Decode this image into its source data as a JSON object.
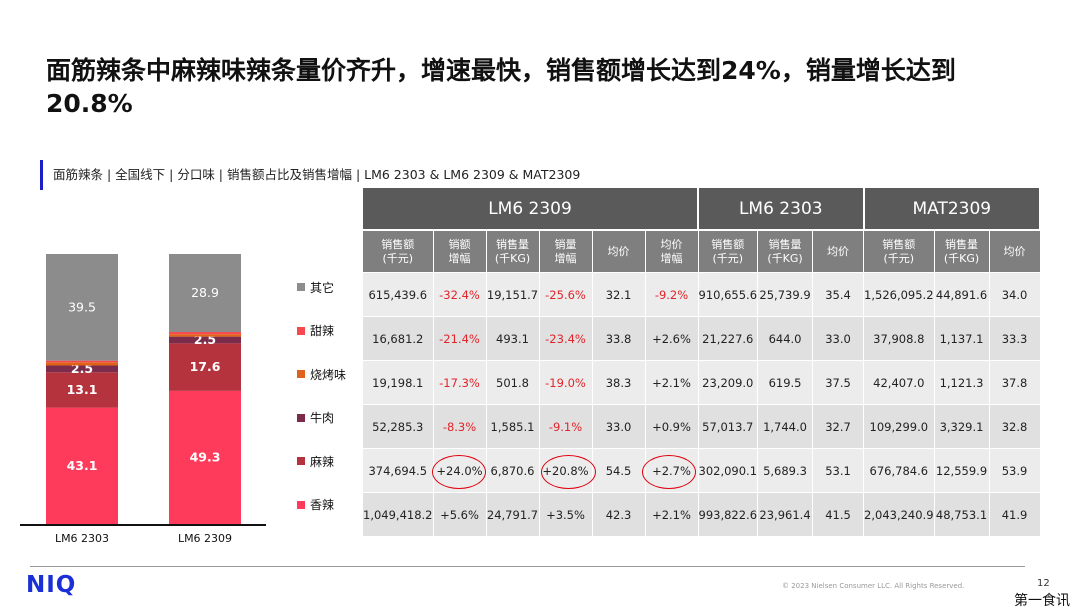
{
  "title": "面筋辣条中麻辣味辣条量价齐升，增速最快，销售额增长达到24%，销量增长达到20.8%",
  "subtitle": "面筋辣条 | 全国线下 | 分口味 | 销售额占比及销售增幅 | LM6 2303 & LM6 2309 & MAT2309",
  "chart_data": {
    "type": "bar",
    "stacked": true,
    "categories": [
      "LM6 2303",
      "LM6 2309"
    ],
    "series": [
      {
        "name": "香辣",
        "values": [
          43.1,
          49.3
        ],
        "color": "#ff3b5c"
      },
      {
        "name": "麻辣",
        "values": [
          13.1,
          17.6
        ],
        "color": "#b5333d"
      },
      {
        "name": "牛肉",
        "values": [
          2.5,
          2.5
        ],
        "color": "#7a2c4a"
      },
      {
        "name": "烧烤味",
        "values": [
          1.2,
          0.9
        ],
        "color": "#e0621a"
      },
      {
        "name": "甜辣",
        "values": [
          0.6,
          0.8
        ],
        "color": "#f7484f"
      },
      {
        "name": "其它",
        "values": [
          39.5,
          28.9
        ],
        "color": "#8c8c8c"
      }
    ],
    "ylim": [
      0,
      100
    ],
    "legend_position": "right"
  },
  "legend": [
    {
      "label": "其它",
      "color": "#8c8c8c"
    },
    {
      "label": "甜辣",
      "color": "#f7484f"
    },
    {
      "label": "烧烤味",
      "color": "#e0621a"
    },
    {
      "label": "牛肉",
      "color": "#7a2c4a"
    },
    {
      "label": "麻辣",
      "color": "#b5333d"
    },
    {
      "label": "香辣",
      "color": "#ff3b5c"
    }
  ],
  "table": {
    "groups": [
      "LM6 2309",
      "LM6 2303",
      "MAT2309"
    ],
    "headers": [
      "销售额\n(千元)",
      "销额\n增幅",
      "销售量\n(千KG)",
      "销量\n增幅",
      "均价",
      "均价\n增幅",
      "销售额\n(千元)",
      "销售量\n(千KG)",
      "均价",
      "销售额\n(千元)",
      "销售量\n(千KG)",
      "均价"
    ],
    "rows": [
      [
        "615,439.6",
        "-32.4%",
        "19,151.7",
        "-25.6%",
        "32.1",
        "-9.2%",
        "910,655.6",
        "25,739.9",
        "35.4",
        "1,526,095.2",
        "44,891.6",
        "34.0"
      ],
      [
        "16,681.2",
        "-21.4%",
        "493.1",
        "-23.4%",
        "33.8",
        "+2.6%",
        "21,227.6",
        "644.0",
        "33.0",
        "37,908.8",
        "1,137.1",
        "33.3"
      ],
      [
        "19,198.1",
        "-17.3%",
        "501.8",
        "-19.0%",
        "38.3",
        "+2.1%",
        "23,209.0",
        "619.5",
        "37.5",
        "42,407.0",
        "1,121.3",
        "37.8"
      ],
      [
        "52,285.3",
        "-8.3%",
        "1,585.1",
        "-9.1%",
        "33.0",
        "+0.9%",
        "57,013.7",
        "1,744.0",
        "32.7",
        "109,299.0",
        "3,329.1",
        "32.8"
      ],
      [
        "374,694.5",
        "+24.0%",
        "6,870.6",
        "+20.8%",
        "54.5",
        "+2.7%",
        "302,090.1",
        "5,689.3",
        "53.1",
        "676,784.6",
        "12,559.9",
        "53.9"
      ],
      [
        "1,049,418.2",
        "+5.6%",
        "24,791.7",
        "+3.5%",
        "42.3",
        "+2.1%",
        "993,822.6",
        "23,961.4",
        "41.5",
        "2,043,240.9",
        "48,753.1",
        "41.9"
      ]
    ]
  },
  "footer": {
    "logo": "NIQ",
    "copyright": "© 2023 Nielsen Consumer LLC. All Rights Reserved.",
    "page_number": "12",
    "watermark": "第一食讯"
  }
}
